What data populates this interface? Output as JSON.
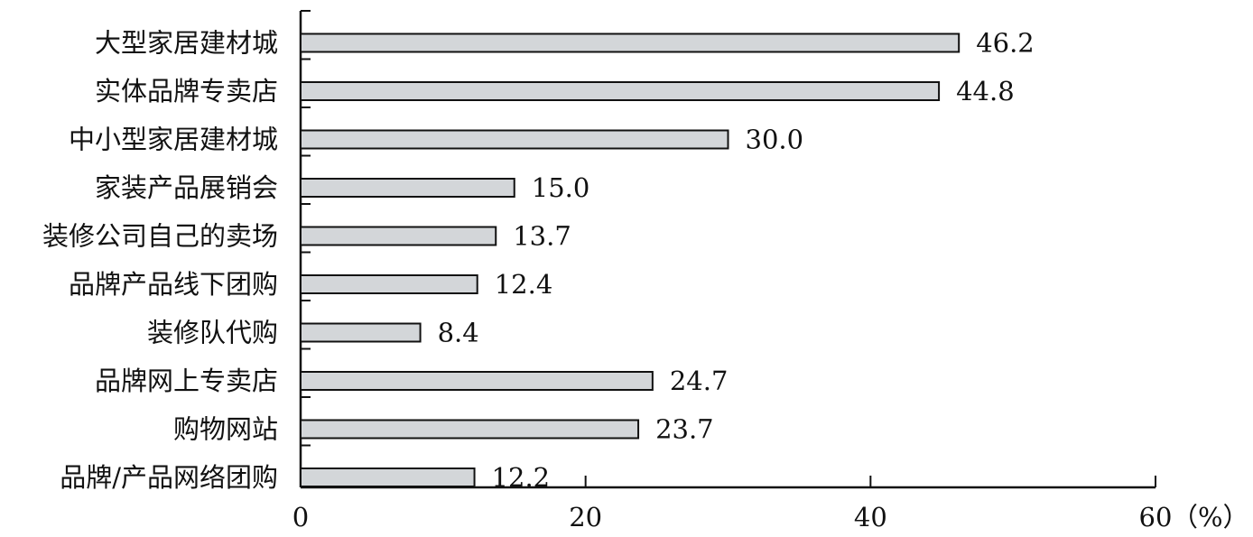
{
  "chart_data": {
    "type": "bar",
    "orientation": "horizontal",
    "categories": [
      "大型家居建材城",
      "实体品牌专卖店",
      "中小型家居建材城",
      "家装产品展销会",
      "装修公司自己的卖场",
      "品牌产品线下团购",
      "装修队代购",
      "品牌网上专卖店",
      "购物网站",
      "品牌/产品网络团购"
    ],
    "values": [
      46.2,
      44.8,
      30.0,
      15.0,
      13.7,
      12.4,
      8.4,
      24.7,
      23.7,
      12.2
    ],
    "value_labels": [
      "46.2",
      "44.8",
      "30.0",
      "15.0",
      "13.7",
      "12.4",
      "8.4",
      "24.7",
      "23.7",
      "12.2"
    ],
    "x_ticks": [
      "0",
      "20",
      "40",
      "60"
    ],
    "x_unit": "（%）",
    "xlim": [
      0,
      60
    ],
    "grid": false,
    "legend": "none",
    "bar_color": "#d3d6d9",
    "bar_edge_color": "#111111"
  }
}
